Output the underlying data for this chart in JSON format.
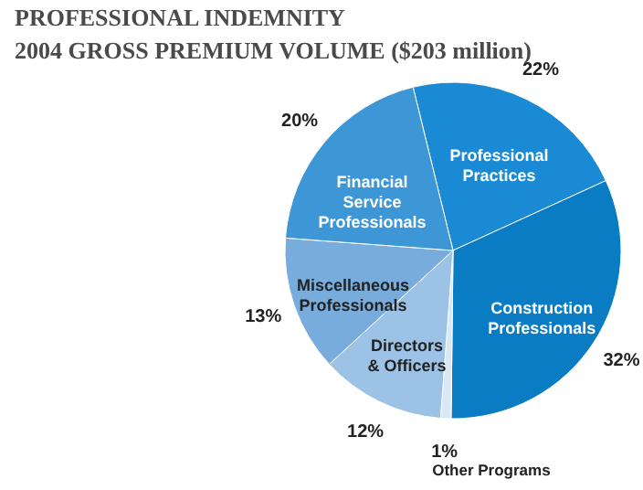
{
  "chart_data": {
    "type": "pie",
    "title": "PROFESSIONAL INDEMNITY",
    "subtitle": "2004 GROSS PREMIUM VOLUME ($203 million)",
    "categories": [
      "Professional Practices",
      "Construction Professionals",
      "Other Programs",
      "Directors & Officers",
      "Miscellaneous Professionals",
      "Financial Service Professionals"
    ],
    "values": [
      22,
      32,
      1,
      12,
      13,
      20
    ],
    "value_labels": [
      "22%",
      "32%",
      "1%",
      "12%",
      "13%",
      "20%"
    ],
    "colors": [
      "#1a8ad4",
      "#0a7cc4",
      "#d8e8f4",
      "#9cc3e6",
      "#78acdc",
      "#3d96d6"
    ]
  }
}
